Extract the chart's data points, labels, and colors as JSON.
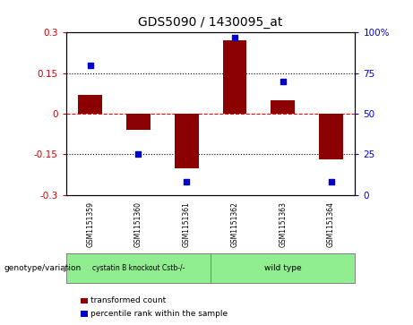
{
  "title": "GDS5090 / 1430095_at",
  "samples": [
    "GSM1151359",
    "GSM1151360",
    "GSM1151361",
    "GSM1151362",
    "GSM1151363",
    "GSM1151364"
  ],
  "red_bars": [
    0.07,
    -0.06,
    -0.2,
    0.27,
    0.05,
    -0.17
  ],
  "blue_dots": [
    80,
    25,
    8,
    97,
    70,
    8
  ],
  "ylim_left": [
    -0.3,
    0.3
  ],
  "ylim_right": [
    0,
    100
  ],
  "yticks_left": [
    -0.3,
    -0.15,
    0,
    0.15,
    0.3
  ],
  "yticks_right": [
    0,
    25,
    50,
    75,
    100
  ],
  "ytick_labels_left": [
    "-0.3",
    "-0.15",
    "0",
    "0.15",
    "0.3"
  ],
  "ytick_labels_right": [
    "0",
    "25",
    "50",
    "75",
    "100%"
  ],
  "group1_label": "cystatin B knockout Cstb-/-",
  "group2_label": "wild type",
  "group1_indices": [
    0,
    1,
    2
  ],
  "group2_indices": [
    3,
    4,
    5
  ],
  "group_color": "#90EE90",
  "sample_box_color": "#CCCCCC",
  "bar_color": "#8B0000",
  "dot_color": "#0000CD",
  "bg_color": "#FFFFFF",
  "legend_red_label": "transformed count",
  "legend_blue_label": "percentile rank within the sample",
  "genotype_label": "genotype/variation",
  "bar_width": 0.5,
  "title_fontsize": 10,
  "tick_fontsize": 7.5,
  "label_fontsize": 7
}
